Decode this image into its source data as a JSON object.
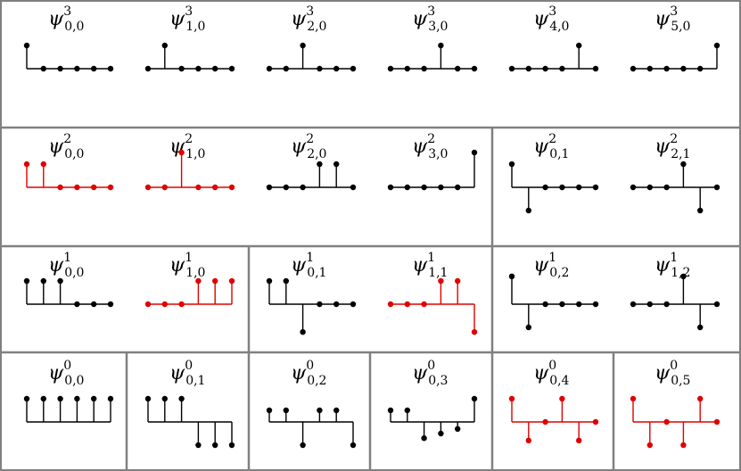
{
  "colors": {
    "black": "#000000",
    "red": "#e00000",
    "border": "#808080"
  },
  "rows": [
    {
      "cells": [
        {
          "items": [
            {
              "sym": "ψ",
              "sub": "0,0",
              "sup": "3",
              "color": "black",
              "values": [
                1,
                0,
                0,
                0,
                0,
                0
              ]
            },
            {
              "sym": "ψ",
              "sub": "1,0",
              "sup": "3",
              "color": "black",
              "values": [
                0,
                1,
                0,
                0,
                0,
                0
              ]
            },
            {
              "sym": "ψ",
              "sub": "2,0",
              "sup": "3",
              "color": "black",
              "values": [
                0,
                0,
                1,
                0,
                0,
                0
              ]
            },
            {
              "sym": "ψ",
              "sub": "3,0",
              "sup": "3",
              "color": "black",
              "values": [
                0,
                0,
                0,
                1,
                0,
                0
              ]
            },
            {
              "sym": "ψ",
              "sub": "4,0",
              "sup": "3",
              "color": "black",
              "values": [
                0,
                0,
                0,
                0,
                1,
                0
              ]
            },
            {
              "sym": "ψ",
              "sub": "5,0",
              "sup": "3",
              "color": "black",
              "values": [
                0,
                0,
                0,
                0,
                0,
                1
              ]
            }
          ]
        }
      ]
    },
    {
      "cells": [
        {
          "items": [
            {
              "sym": "ψ",
              "sub": "0,0",
              "sup": "2",
              "color": "red",
              "values": [
                1,
                1,
                0,
                0,
                0,
                0
              ]
            },
            {
              "sym": "ψ",
              "sub": "1,0",
              "sup": "2",
              "color": "red",
              "values": [
                0,
                0,
                1.5,
                0,
                0,
                0
              ]
            },
            {
              "sym": "ψ",
              "sub": "2,0",
              "sup": "2",
              "color": "black",
              "values": [
                0,
                0,
                0,
                1,
                1,
                0
              ]
            },
            {
              "sym": "ψ",
              "sub": "3,0",
              "sup": "2",
              "color": "black",
              "values": [
                0,
                0,
                0,
                0,
                0,
                1.5
              ]
            }
          ]
        },
        {
          "items": [
            {
              "sym": "ψ",
              "sub": "0,1",
              "sup": "2",
              "color": "black",
              "values": [
                1,
                -1,
                0,
                0,
                0,
                0
              ]
            },
            {
              "sym": "ψ",
              "sub": "2,1",
              "sup": "2",
              "color": "black",
              "values": [
                0,
                0,
                0,
                1,
                -1,
                0
              ]
            }
          ]
        }
      ]
    },
    {
      "cells": [
        {
          "items": [
            {
              "sym": "ψ",
              "sub": "0,0",
              "sup": "1",
              "color": "black",
              "values": [
                1,
                1,
                1,
                0,
                0,
                0
              ]
            },
            {
              "sym": "ψ",
              "sub": "1,0",
              "sup": "1",
              "color": "red",
              "values": [
                0,
                0,
                0,
                1,
                1,
                1
              ]
            }
          ]
        },
        {
          "items": [
            {
              "sym": "ψ",
              "sub": "0,1",
              "sup": "1",
              "color": "black",
              "values": [
                1,
                1,
                -1.2,
                0,
                0,
                0
              ]
            },
            {
              "sym": "ψ",
              "sub": "1,1",
              "sup": "1",
              "color": "red",
              "values": [
                0,
                0,
                0,
                1,
                1,
                -1.2
              ]
            }
          ]
        },
        {
          "items": [
            {
              "sym": "ψ",
              "sub": "0,2",
              "sup": "1",
              "color": "black",
              "values": [
                1.2,
                -1,
                0,
                0,
                0,
                0
              ]
            },
            {
              "sym": "ψ",
              "sub": "1,2",
              "sup": "1",
              "color": "black",
              "values": [
                0,
                0,
                0,
                1.2,
                -1,
                0
              ]
            }
          ]
        }
      ]
    },
    {
      "cells": [
        {
          "items": [
            {
              "sym": "ψ",
              "sub": "0,0",
              "sup": "0",
              "color": "black",
              "values": [
                1,
                1,
                1,
                1,
                1,
                1
              ]
            }
          ]
        },
        {
          "items": [
            {
              "sym": "ψ",
              "sub": "0,1",
              "sup": "0",
              "color": "black",
              "values": [
                1,
                1,
                1,
                -1,
                -1,
                -1
              ]
            }
          ]
        },
        {
          "items": [
            {
              "sym": "ψ",
              "sub": "0,2",
              "sup": "0",
              "color": "black",
              "values": [
                0.5,
                0.5,
                -1,
                0.5,
                0.5,
                -1
              ]
            }
          ]
        },
        {
          "items": [
            {
              "sym": "ψ",
              "sub": "0,3",
              "sup": "0",
              "color": "black",
              "values": [
                0.5,
                0.5,
                -0.7,
                -0.5,
                -0.3,
                1
              ]
            }
          ]
        },
        {
          "items": [
            {
              "sym": "ψ",
              "sub": "0,4",
              "sup": "0",
              "color": "red",
              "values": [
                1,
                -0.8,
                0,
                1,
                -0.8,
                0
              ]
            }
          ]
        },
        {
          "items": [
            {
              "sym": "ψ",
              "sub": "0,5",
              "sup": "0",
              "color": "red",
              "values": [
                1,
                -1,
                0,
                -1,
                1,
                0
              ]
            }
          ]
        }
      ]
    }
  ]
}
